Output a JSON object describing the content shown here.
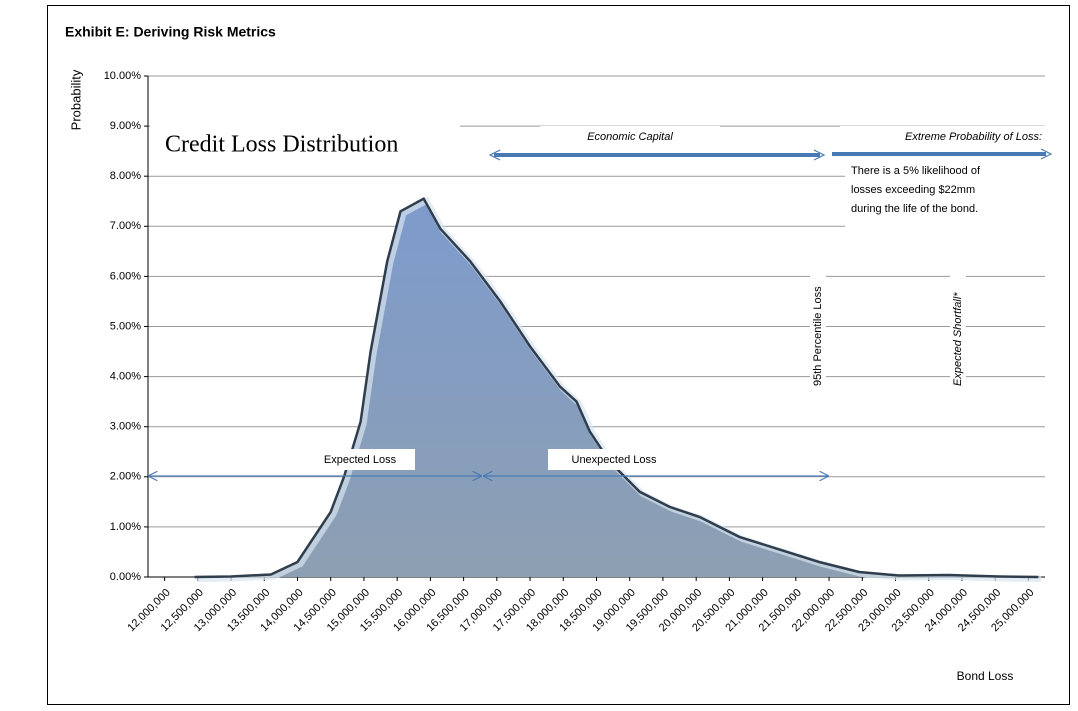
{
  "chart_data": {
    "type": "area",
    "title": "Exhibit E: Deriving Risk Metrics",
    "x_label": "Bond Loss",
    "y_label": "Probability",
    "x": [
      12450000,
      13000000,
      13600000,
      14000000,
      14500000,
      14700000,
      14950000,
      15100000,
      15350000,
      15550000,
      15900000,
      16150000,
      16600000,
      17050000,
      17500000,
      17950000,
      18200000,
      18400000,
      18700000,
      19150000,
      19600000,
      20050000,
      20650000,
      21250000,
      21850000,
      22450000,
      23050000,
      23800000,
      24550000,
      25150000
    ],
    "values": [
      0,
      0.01,
      0.05,
      0.3,
      1.3,
      2.0,
      3.1,
      4.5,
      6.3,
      7.3,
      7.55,
      6.95,
      6.3,
      5.5,
      4.6,
      3.8,
      3.5,
      2.9,
      2.3,
      1.7,
      1.4,
      1.2,
      0.8,
      0.55,
      0.3,
      0.1,
      0.03,
      0.04,
      0.01,
      0
    ],
    "color": "#8fa3c0",
    "xlim": [
      11750000,
      25250000
    ],
    "xticks": [
      {
        "value": 12000000,
        "label": "12,000,000"
      },
      {
        "value": 12500000,
        "label": "12,500,000"
      },
      {
        "value": 13000000,
        "label": "13,000,000"
      },
      {
        "value": 13500000,
        "label": "13,500,000"
      },
      {
        "value": 14000000,
        "label": "14,000,000"
      },
      {
        "value": 14500000,
        "label": "14,500,000"
      },
      {
        "value": 15000000,
        "label": "15,000,000"
      },
      {
        "value": 15500000,
        "label": "15,500,000"
      },
      {
        "value": 16000000,
        "label": "16,000,000"
      },
      {
        "value": 16500000,
        "label": "16,500,000"
      },
      {
        "value": 17000000,
        "label": "17,000,000"
      },
      {
        "value": 17500000,
        "label": "17,500,000"
      },
      {
        "value": 18000000,
        "label": "18,000,000"
      },
      {
        "value": 18500000,
        "label": "18,500,000"
      },
      {
        "value": 19000000,
        "label": "19,000,000"
      },
      {
        "value": 19500000,
        "label": "19,500,000"
      },
      {
        "value": 20000000,
        "label": "20,000,000"
      },
      {
        "value": 20500000,
        "label": "20,500,000"
      },
      {
        "value": 21000000,
        "label": "21,000,000"
      },
      {
        "value": 21500000,
        "label": "21,500,000"
      },
      {
        "value": 22000000,
        "label": "22,000,000"
      },
      {
        "value": 22500000,
        "label": "22,500,000"
      },
      {
        "value": 23000000,
        "label": "23,000,000"
      },
      {
        "value": 23500000,
        "label": "23,500,000"
      },
      {
        "value": 24000000,
        "label": "24,000,000"
      },
      {
        "value": 24500000,
        "label": "24,500,000"
      },
      {
        "value": 25000000,
        "label": "25,000,000"
      }
    ],
    "ylim": [
      0,
      10
    ],
    "yticks": [
      {
        "value": 0,
        "label": "0.00%"
      },
      {
        "value": 1,
        "label": "1.00%"
      },
      {
        "value": 2,
        "label": "2.00%"
      },
      {
        "value": 3,
        "label": "3.00%"
      },
      {
        "value": 4,
        "label": "4.00%"
      },
      {
        "value": 5,
        "label": "5.00%"
      },
      {
        "value": 6,
        "label": "6.00%"
      },
      {
        "value": 7,
        "label": "7.00%"
      },
      {
        "value": 8,
        "label": "8.00%"
      },
      {
        "value": 9,
        "label": "9.00%"
      },
      {
        "value": 10,
        "label": "10.00%"
      }
    ],
    "grid": true,
    "annotations": {
      "distribution_label": "Credit Loss Distribution",
      "economic_capital": "Economic Capital",
      "extreme_probability": "Extreme Probability of Loss:",
      "extreme_note": [
        "There is a 5% likelihood of",
        "losses exceeding $22mm",
        "during the life of the bond."
      ],
      "percentile_95": "95th Percentile Loss",
      "expected_shortfall": "Expected Shortfall*",
      "expected_loss": "Expected Loss",
      "unexpected_loss": "Unexpected Loss"
    }
  }
}
